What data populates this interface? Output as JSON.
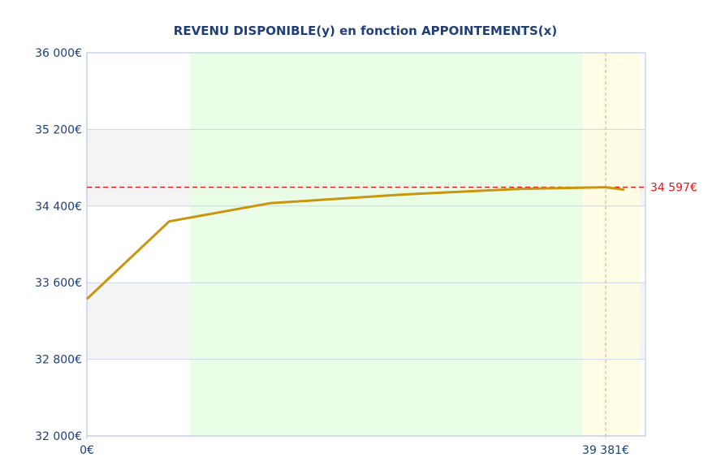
{
  "chart_data": {
    "type": "line",
    "title": "REVENU DISPONIBLE(y) en fonction APPOINTEMENTS(x)",
    "xlabel": "",
    "ylabel": "",
    "xlim": [
      0,
      42400
    ],
    "ylim": [
      32000,
      36000
    ],
    "y_ticks": [
      32000,
      32800,
      33600,
      34400,
      35200,
      36000
    ],
    "y_tick_labels": [
      "32 000€",
      "32 800€",
      "33 600€",
      "34 400€",
      "35 200€",
      "36 000€"
    ],
    "x_tick_labels": [
      {
        "x": 0,
        "label": "0€"
      },
      {
        "x": 39381,
        "label": "39 381€"
      }
    ],
    "series": [
      {
        "color": "#c9950e",
        "points": [
          [
            0,
            33430
          ],
          [
            6250,
            34240
          ],
          [
            13900,
            34430
          ],
          [
            24000,
            34520
          ],
          [
            33000,
            34580
          ],
          [
            39381,
            34597
          ],
          [
            40800,
            34570
          ]
        ]
      }
    ],
    "bands": {
      "x": [
        {
          "from": 7850,
          "to": 37600,
          "color": "#e6fde3"
        },
        {
          "from": 37600,
          "to": 42000,
          "color": "#fffde0"
        }
      ],
      "y": [
        {
          "from": 32800,
          "to": 33600,
          "color": "#f4f4f4"
        },
        {
          "from": 34400,
          "to": 35200,
          "color": "#f4f4f4"
        }
      ]
    },
    "reference_lines": [
      {
        "axis": "y",
        "value": 34597,
        "label": "34 597€",
        "color": "#e8161b"
      },
      {
        "axis": "x",
        "value": 39381,
        "color": "#f4a27d"
      }
    ],
    "grid": true,
    "legend": "none"
  }
}
